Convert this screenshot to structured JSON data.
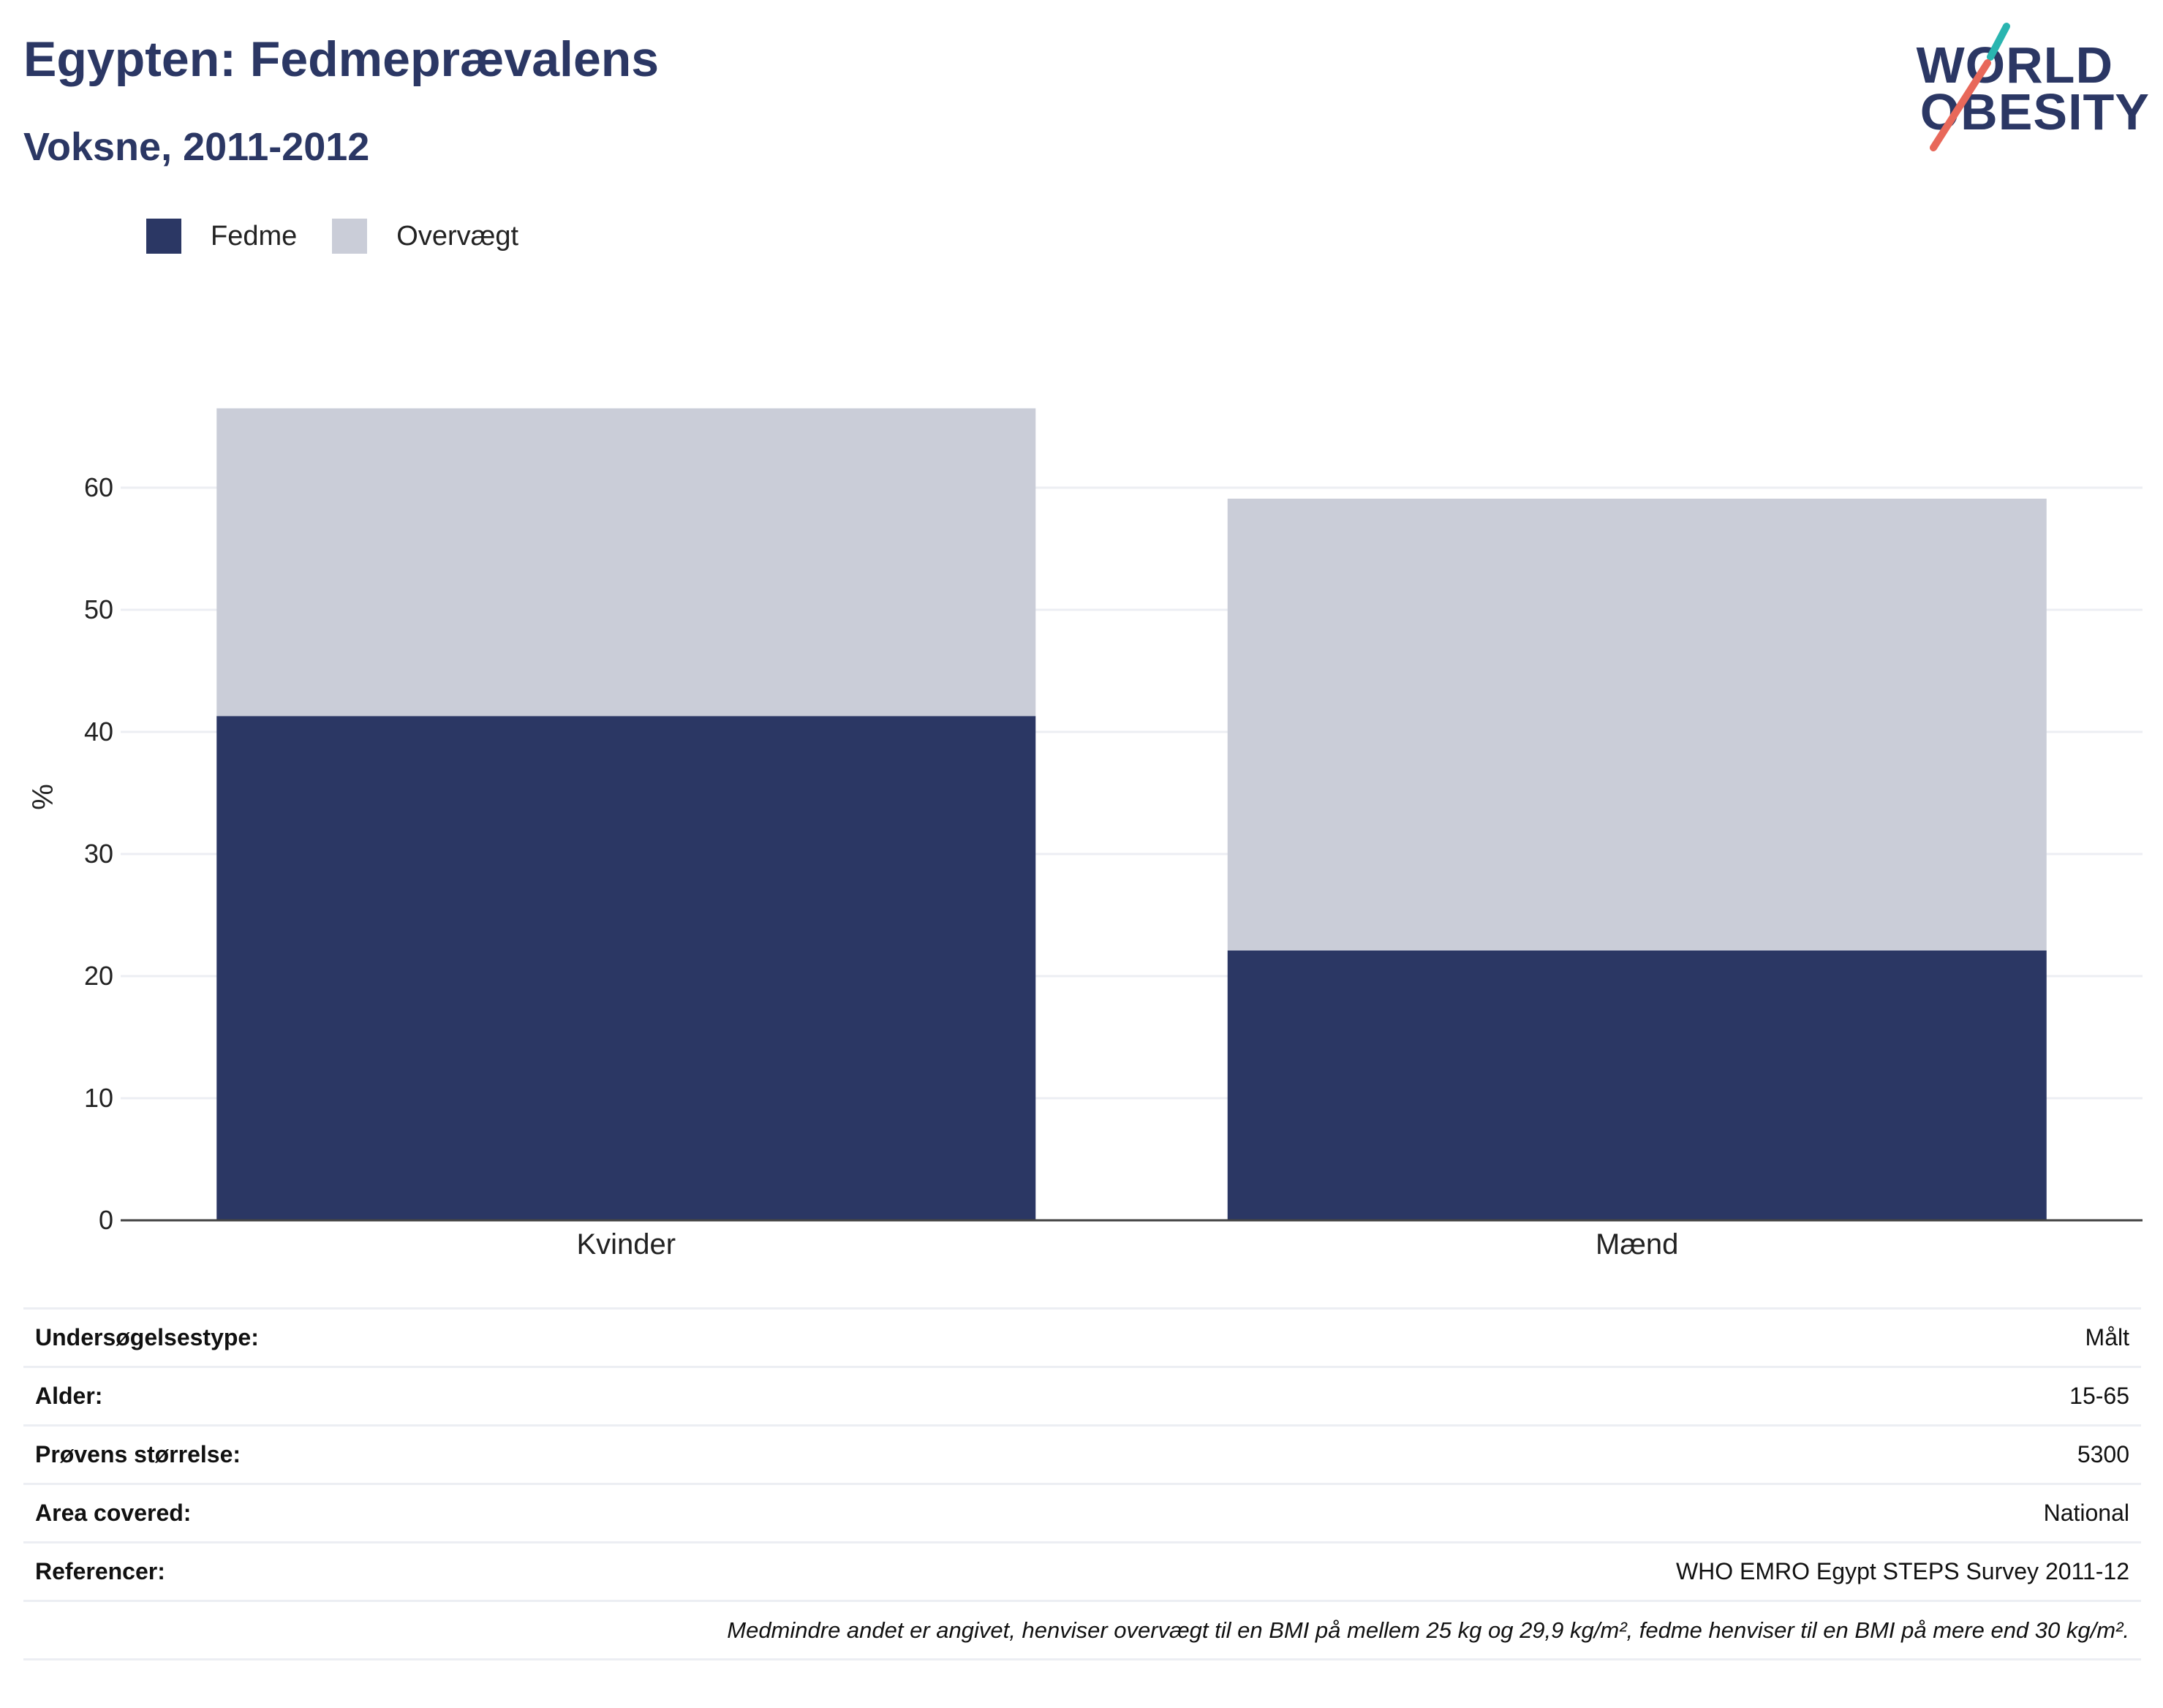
{
  "header": {
    "title": "Egypten: Fedmeprævalens",
    "subtitle": "Voksne, 2011-2012"
  },
  "logo": {
    "line1": "WORLD",
    "line2": "OBESITY",
    "accent_teal": "#2ab5b0",
    "accent_coral": "#e8685a"
  },
  "colors": {
    "fedme": "#2b3764",
    "overvaegt": "#cacdd8",
    "text": "#222222",
    "title": "#2b3764"
  },
  "chart_data": {
    "type": "bar",
    "stacked": true,
    "categories": [
      "Kvinder",
      "Mænd"
    ],
    "series": [
      {
        "name": "Fedme",
        "values": [
          41.3,
          22.1
        ]
      },
      {
        "name": "Overvægt",
        "values": [
          25.2,
          37.0
        ]
      }
    ],
    "ylabel": "%",
    "ylim": [
      0,
      68
    ],
    "yticks": [
      0,
      10,
      20,
      30,
      40,
      50,
      60
    ],
    "grid": true,
    "legend_position": "top-left"
  },
  "info_table": {
    "rows": [
      {
        "key": "Undersøgelsestype:",
        "value": "Målt"
      },
      {
        "key": "Alder:",
        "value": "15-65"
      },
      {
        "key": "Prøvens størrelse:",
        "value": "5300"
      },
      {
        "key": "Area covered:",
        "value": "National"
      },
      {
        "key": "Referencer:",
        "value": "WHO EMRO Egypt STEPS Survey 2011-12"
      }
    ],
    "note": "Medmindre andet er angivet, henviser overvægt til en BMI på mellem 25 kg og 29,9 kg/m², fedme henviser til en BMI på mere end 30 kg/m²."
  }
}
